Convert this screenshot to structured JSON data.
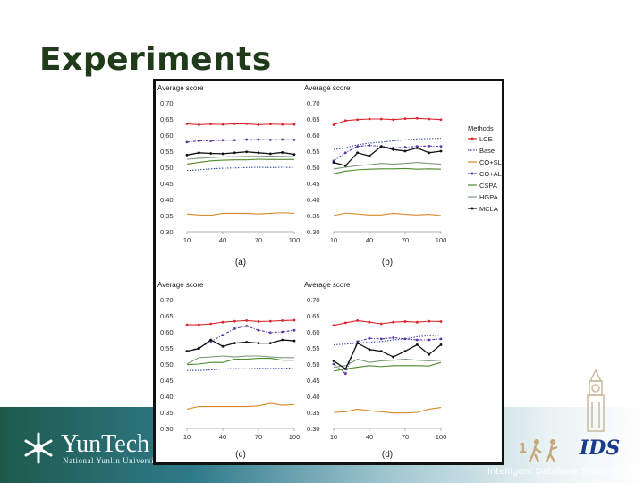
{
  "slide": {
    "title": "Experiments",
    "footer_lab": "Intelligent Database Systems Lab",
    "logo_name": "YunTech",
    "logo_sub": "National Yunlin University",
    "ids_logo": "IDS",
    "colors": {
      "title": "#1f3b1a",
      "footer_dark": "#1e5a4c"
    },
    "icons": [
      "yuntech-snowflake-icon",
      "clock-tower-icon",
      "runner-figures-icon"
    ]
  },
  "legend": {
    "title": "Methods",
    "placement": "right",
    "entries": [
      {
        "name": "LCE",
        "color": "#d9262c",
        "style": "solid-marker"
      },
      {
        "name": "Base",
        "color": "#3c4ca0",
        "style": "dotted"
      },
      {
        "name": "CO+SL",
        "color": "#d8882a",
        "style": "solid"
      },
      {
        "name": "CO+AL",
        "color": "#5b3aa8",
        "style": "dash-dot-marker"
      },
      {
        "name": "CSPA",
        "color": "#4e8a2a",
        "style": "solid"
      },
      {
        "name": "HGPA",
        "color": "#7a9a7a",
        "style": "solid"
      },
      {
        "name": "MCLA",
        "color": "#111111",
        "style": "solid-marker"
      }
    ]
  },
  "chart_data": [
    {
      "type": "line",
      "caption": "(a)",
      "ylabel": "Average score",
      "ylim": [
        0.3,
        0.7
      ],
      "yticks": [
        "0.30",
        "0.35",
        "0.40",
        "0.45",
        "0.50",
        "0.55",
        "0.60",
        "0.65",
        "0.70"
      ],
      "xlim": [
        10,
        100
      ],
      "xticks": [
        "10",
        "40",
        "70",
        "100"
      ],
      "x": [
        10,
        20,
        30,
        40,
        50,
        60,
        70,
        80,
        90,
        100
      ],
      "series": [
        {
          "name": "LCE",
          "values": [
            0.635,
            0.632,
            0.634,
            0.633,
            0.635,
            0.635,
            0.632,
            0.634,
            0.633,
            0.633
          ]
        },
        {
          "name": "Base",
          "values": [
            0.49,
            0.492,
            0.495,
            0.497,
            0.498,
            0.499,
            0.5,
            0.499,
            0.5,
            0.499
          ]
        },
        {
          "name": "CO+SL",
          "values": [
            0.355,
            0.352,
            0.351,
            0.357,
            0.357,
            0.357,
            0.355,
            0.357,
            0.359,
            0.357
          ]
        },
        {
          "name": "CO+AL",
          "values": [
            0.578,
            0.582,
            0.582,
            0.584,
            0.584,
            0.586,
            0.586,
            0.585,
            0.586,
            0.585
          ]
        },
        {
          "name": "CSPA",
          "values": [
            0.51,
            0.515,
            0.52,
            0.522,
            0.523,
            0.523,
            0.525,
            0.524,
            0.524,
            0.524
          ]
        },
        {
          "name": "HGPA",
          "values": [
            0.525,
            0.528,
            0.53,
            0.532,
            0.533,
            0.534,
            0.534,
            0.535,
            0.534,
            0.533
          ]
        },
        {
          "name": "MCLA",
          "values": [
            0.538,
            0.545,
            0.543,
            0.542,
            0.545,
            0.548,
            0.545,
            0.542,
            0.546,
            0.54
          ]
        }
      ]
    },
    {
      "type": "line",
      "caption": "(b)",
      "ylabel": "Average score",
      "ylim": [
        0.3,
        0.7
      ],
      "yticks": [
        "0.30",
        "0.35",
        "0.40",
        "0.45",
        "0.50",
        "0.55",
        "0.60",
        "0.65",
        "0.70"
      ],
      "xlim": [
        10,
        100
      ],
      "xticks": [
        "10",
        "40",
        "70",
        "100"
      ],
      "x": [
        10,
        20,
        30,
        40,
        50,
        60,
        70,
        80,
        90,
        100
      ],
      "series": [
        {
          "name": "LCE",
          "values": [
            0.632,
            0.645,
            0.648,
            0.65,
            0.65,
            0.648,
            0.651,
            0.652,
            0.65,
            0.648
          ]
        },
        {
          "name": "Base",
          "values": [
            0.555,
            0.56,
            0.57,
            0.575,
            0.578,
            0.582,
            0.585,
            0.588,
            0.589,
            0.59
          ]
        },
        {
          "name": "CO+SL",
          "values": [
            0.35,
            0.358,
            0.355,
            0.352,
            0.352,
            0.357,
            0.354,
            0.352,
            0.354,
            0.35
          ]
        },
        {
          "name": "CO+AL",
          "values": [
            0.52,
            0.545,
            0.565,
            0.568,
            0.565,
            0.56,
            0.562,
            0.565,
            0.566,
            0.565
          ]
        },
        {
          "name": "CSPA",
          "values": [
            0.48,
            0.488,
            0.492,
            0.494,
            0.495,
            0.495,
            0.496,
            0.494,
            0.495,
            0.494
          ]
        },
        {
          "name": "HGPA",
          "values": [
            0.495,
            0.5,
            0.505,
            0.508,
            0.512,
            0.51,
            0.512,
            0.515,
            0.512,
            0.51
          ]
        },
        {
          "name": "MCLA",
          "values": [
            0.515,
            0.505,
            0.545,
            0.535,
            0.565,
            0.555,
            0.55,
            0.56,
            0.545,
            0.55
          ]
        }
      ]
    },
    {
      "type": "line",
      "caption": "(c)",
      "ylabel": "Average score",
      "ylim": [
        0.3,
        0.7
      ],
      "yticks": [
        "0.30",
        "0.35",
        "0.40",
        "0.45",
        "0.50",
        "0.55",
        "0.60",
        "0.65",
        "0.70"
      ],
      "xlim": [
        10,
        100
      ],
      "xticks": [
        "10",
        "40",
        "70",
        "100"
      ],
      "x": [
        10,
        20,
        30,
        40,
        50,
        60,
        70,
        80,
        90,
        100
      ],
      "series": [
        {
          "name": "LCE",
          "values": [
            0.622,
            0.622,
            0.625,
            0.63,
            0.633,
            0.635,
            0.632,
            0.633,
            0.635,
            0.636
          ]
        },
        {
          "name": "Base",
          "values": [
            0.48,
            0.48,
            0.482,
            0.485,
            0.486,
            0.485,
            0.487,
            0.486,
            0.487,
            0.488
          ]
        },
        {
          "name": "CO+SL",
          "values": [
            0.36,
            0.368,
            0.368,
            0.368,
            0.368,
            0.368,
            0.37,
            0.378,
            0.372,
            0.374
          ]
        },
        {
          "name": "CO+AL",
          "values": [
            0.54,
            0.55,
            0.57,
            0.59,
            0.61,
            0.618,
            0.605,
            0.598,
            0.6,
            0.605
          ]
        },
        {
          "name": "CSPA",
          "values": [
            0.498,
            0.5,
            0.505,
            0.505,
            0.515,
            0.515,
            0.518,
            0.518,
            0.512,
            0.512
          ]
        },
        {
          "name": "HGPA",
          "values": [
            0.5,
            0.52,
            0.522,
            0.525,
            0.522,
            0.525,
            0.525,
            0.522,
            0.52,
            0.52
          ]
        },
        {
          "name": "MCLA",
          "values": [
            0.54,
            0.548,
            0.575,
            0.555,
            0.565,
            0.568,
            0.565,
            0.565,
            0.575,
            0.572
          ]
        }
      ]
    },
    {
      "type": "line",
      "caption": "(d)",
      "ylabel": "Average score",
      "ylim": [
        0.3,
        0.7
      ],
      "yticks": [
        "0.30",
        "0.35",
        "0.40",
        "0.45",
        "0.50",
        "0.55",
        "0.60",
        "0.65",
        "0.70"
      ],
      "xlim": [
        10,
        100
      ],
      "xticks": [
        "10",
        "40",
        "70",
        "100"
      ],
      "x": [
        10,
        20,
        30,
        40,
        50,
        60,
        70,
        80,
        90,
        100
      ],
      "series": [
        {
          "name": "LCE",
          "values": [
            0.62,
            0.628,
            0.635,
            0.63,
            0.625,
            0.63,
            0.632,
            0.63,
            0.633,
            0.632
          ]
        },
        {
          "name": "Base",
          "values": [
            0.56,
            0.562,
            0.565,
            0.568,
            0.57,
            0.575,
            0.578,
            0.585,
            0.588,
            0.59
          ]
        },
        {
          "name": "CO+SL",
          "values": [
            0.35,
            0.352,
            0.36,
            0.355,
            0.352,
            0.348,
            0.348,
            0.35,
            0.36,
            0.365
          ]
        },
        {
          "name": "CO+AL",
          "values": [
            0.5,
            0.47,
            0.57,
            0.58,
            0.578,
            0.582,
            0.578,
            0.575,
            0.575,
            0.578
          ]
        },
        {
          "name": "CSPA",
          "values": [
            0.478,
            0.485,
            0.49,
            0.495,
            0.492,
            0.495,
            0.495,
            0.495,
            0.494,
            0.505
          ]
        },
        {
          "name": "HGPA",
          "values": [
            0.49,
            0.495,
            0.515,
            0.505,
            0.51,
            0.512,
            0.515,
            0.512,
            0.51,
            0.512
          ]
        },
        {
          "name": "MCLA",
          "values": [
            0.51,
            0.485,
            0.565,
            0.545,
            0.54,
            0.522,
            0.54,
            0.56,
            0.53,
            0.56
          ]
        }
      ]
    }
  ]
}
